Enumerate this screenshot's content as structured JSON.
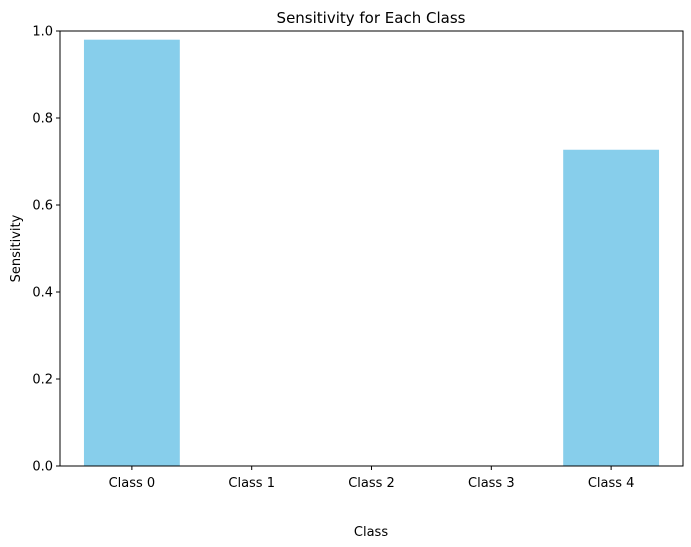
{
  "chart_data": {
    "type": "bar",
    "title": "Sensitivity for Each Class",
    "xlabel": "Class",
    "ylabel": "Sensitivity",
    "categories": [
      "Class 0",
      "Class 1",
      "Class 2",
      "Class 3",
      "Class 4"
    ],
    "values": [
      0.98,
      0.0,
      0.0,
      0.0,
      0.727
    ],
    "ylim": [
      0.0,
      1.0
    ],
    "yticks": [
      "0.0",
      "0.2",
      "0.4",
      "0.6",
      "0.8",
      "1.0"
    ],
    "grid": false,
    "bar_color": "#87ceeb"
  }
}
